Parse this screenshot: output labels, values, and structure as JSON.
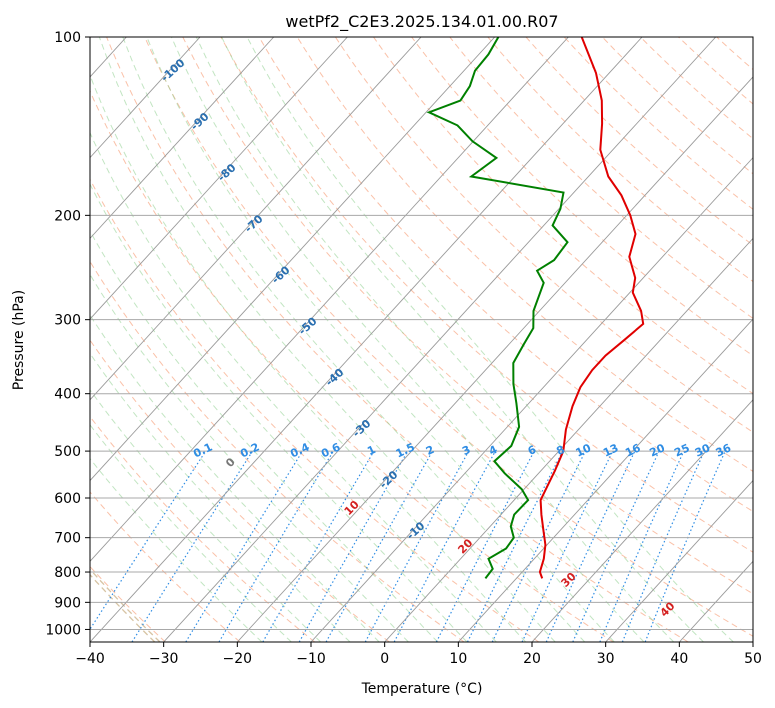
{
  "chart_data": {
    "type": "line",
    "title": "wetPf2_C2E3.2025.134.01.00.R07",
    "xlabel": "Temperature (°C)",
    "ylabel": "Pressure (hPa)",
    "xlim": [
      -40,
      50
    ],
    "ylim": [
      1050,
      100
    ],
    "y_scale": "log",
    "grid": true,
    "xticks": [
      -40,
      -30,
      -20,
      -10,
      0,
      10,
      20,
      30,
      40,
      50
    ],
    "yticks": [
      100,
      200,
      300,
      400,
      500,
      600,
      700,
      800,
      900,
      1000
    ],
    "series": [
      {
        "name": "",
        "color": "#e00000",
        "points": [
          [
            13.5,
            820
          ],
          [
            12.4,
            800
          ],
          [
            11.3,
            760
          ],
          [
            9.8,
            720
          ],
          [
            7.7,
            680
          ],
          [
            5.5,
            640
          ],
          [
            3.6,
            605
          ],
          [
            2.7,
            570
          ],
          [
            1.9,
            540
          ],
          [
            0.6,
            500
          ],
          [
            -1.7,
            460
          ],
          [
            -3.7,
            420
          ],
          [
            -5.0,
            390
          ],
          [
            -5.5,
            365
          ],
          [
            -5.5,
            345
          ],
          [
            -4.9,
            325
          ],
          [
            -4.3,
            305
          ],
          [
            -6.2,
            290
          ],
          [
            -9.6,
            270
          ],
          [
            -11.1,
            255
          ],
          [
            -14.5,
            235
          ],
          [
            -16.5,
            215
          ],
          [
            -19.5,
            200
          ],
          [
            -23.2,
            185
          ],
          [
            -27.3,
            172
          ],
          [
            -31.7,
            155
          ],
          [
            -34.7,
            140
          ],
          [
            -37.6,
            128
          ],
          [
            -41.8,
            115
          ],
          [
            -45.1,
            107
          ],
          [
            -48.2,
            100
          ]
        ]
      },
      {
        "name": "",
        "color": "#008000",
        "points": [
          [
            5.8,
            820
          ],
          [
            5.6,
            790
          ],
          [
            3.8,
            760
          ],
          [
            4.9,
            730
          ],
          [
            4.6,
            700
          ],
          [
            2.8,
            670
          ],
          [
            1.8,
            640
          ],
          [
            1.9,
            605
          ],
          [
            -0.3,
            580
          ],
          [
            -4.6,
            545
          ],
          [
            -7.5,
            520
          ],
          [
            -7.1,
            490
          ],
          [
            -8.4,
            455
          ],
          [
            -11.7,
            415
          ],
          [
            -14.5,
            385
          ],
          [
            -17.1,
            355
          ],
          [
            -18.0,
            330
          ],
          [
            -18.7,
            310
          ],
          [
            -20.8,
            290
          ],
          [
            -22.9,
            260
          ],
          [
            -25.3,
            248
          ],
          [
            -24.3,
            238
          ],
          [
            -24.7,
            222
          ],
          [
            -28.8,
            208
          ],
          [
            -29.8,
            195
          ],
          [
            -31.4,
            183
          ],
          [
            -45.9,
            172
          ],
          [
            -44.8,
            160
          ],
          [
            -50.1,
            150
          ],
          [
            -54.1,
            141
          ],
          [
            -59.6,
            134
          ],
          [
            -56.8,
            128
          ],
          [
            -57.3,
            121
          ],
          [
            -58.5,
            114
          ],
          [
            -58.7,
            107
          ],
          [
            -59.5,
            100
          ]
        ]
      }
    ],
    "isotherm_labels": [
      "-100",
      "-90",
      "-80",
      "-70",
      "-60",
      "-50",
      "-40",
      "-30",
      "-20",
      "-10"
    ],
    "mixing_ratio_labels": [
      "0.1",
      "0.2",
      "0.4",
      "0.6",
      "1",
      "1.5",
      "2",
      "3",
      "4",
      "6",
      "8",
      "10",
      "13",
      "16",
      "20",
      "25",
      "30",
      "36"
    ],
    "moist_adiabat_labels": [
      "0",
      "10",
      "20",
      "30",
      "40"
    ],
    "colors": {
      "isotherm": "#2a6fb0",
      "mixing_ratio": "#2f8de4",
      "moist_adiabat_label": "#d42020",
      "zero_label": "#777777"
    }
  }
}
